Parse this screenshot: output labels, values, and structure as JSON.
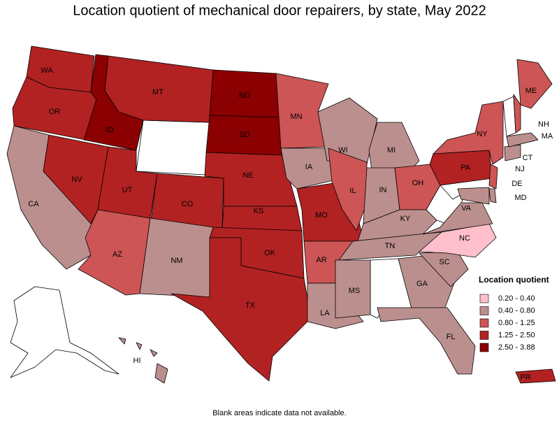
{
  "title": "Location quotient of mechanical door repairers, by state, May 2022",
  "states": [
    {
      "label": "WA",
      "color": "#b22222"
    },
    {
      "label": "OR",
      "color": "#b22222"
    },
    {
      "label": "CA",
      "color": "#bc8f8f"
    },
    {
      "label": "NV",
      "color": "#b22222"
    },
    {
      "label": "ID",
      "color": "#8b0000"
    },
    {
      "label": "MT",
      "color": "#b22222"
    },
    {
      "label": "UT",
      "color": "#b22222"
    },
    {
      "label": "CO",
      "color": "#b22222"
    },
    {
      "label": "AZ",
      "color": "#cd5555"
    },
    {
      "label": "NM",
      "color": "#bc8f8f"
    },
    {
      "label": "ND",
      "color": "#8b0000"
    },
    {
      "label": "SD",
      "color": "#8b0000"
    },
    {
      "label": "NE",
      "color": "#b22222"
    },
    {
      "label": "KS",
      "color": "#b22222"
    },
    {
      "label": "OK",
      "color": "#b22222"
    },
    {
      "label": "TX",
      "color": "#b22222"
    },
    {
      "label": "MN",
      "color": "#cd5555"
    },
    {
      "label": "IA",
      "color": "#bc8f8f"
    },
    {
      "label": "MO",
      "color": "#b22222"
    },
    {
      "label": "AR",
      "color": "#cd5555"
    },
    {
      "label": "LA",
      "color": "#bc8f8f"
    },
    {
      "label": "WI",
      "color": "#bc8f8f"
    },
    {
      "label": "IL",
      "color": "#cd5555"
    },
    {
      "label": "MI",
      "color": "#bc8f8f"
    },
    {
      "label": "IN",
      "color": "#bc8f8f"
    },
    {
      "label": "OH",
      "color": "#cd5555"
    },
    {
      "label": "KY",
      "color": "#bc8f8f"
    },
    {
      "label": "TN",
      "color": "#bc8f8f"
    },
    {
      "label": "MS",
      "color": "#bc8f8f"
    },
    {
      "label": "GA",
      "color": "#bc8f8f"
    },
    {
      "label": "FL",
      "color": "#bc8f8f"
    },
    {
      "label": "SC",
      "color": "#bc8f8f"
    },
    {
      "label": "NC",
      "color": "#ffc0cb"
    },
    {
      "label": "VA",
      "color": "#bc8f8f"
    },
    {
      "label": "MD",
      "color": "#bc8f8f"
    },
    {
      "label": "DE",
      "color": "#bc8f8f"
    },
    {
      "label": "PA",
      "color": "#b22222"
    },
    {
      "label": "NJ",
      "color": "#cd5555"
    },
    {
      "label": "NY",
      "color": "#cd5555"
    },
    {
      "label": "CT",
      "color": "#bc8f8f"
    },
    {
      "label": "MA",
      "color": "#bc8f8f"
    },
    {
      "label": "NH",
      "color": "#cd5555"
    },
    {
      "label": "ME",
      "color": "#cd5555"
    },
    {
      "label": "HI",
      "color": "#bc8f8f"
    },
    {
      "label": "PR",
      "color": "#b22222"
    }
  ],
  "legend": {
    "title": "Location quotient",
    "items": [
      {
        "label": "0.20 - 0.40",
        "color": "#ffc0cb"
      },
      {
        "label": "0.40 - 0.80",
        "color": "#bc8f8f"
      },
      {
        "label": "0.80 - 1.25",
        "color": "#cd5555"
      },
      {
        "label": "1.25 - 2.50",
        "color": "#b22222"
      },
      {
        "label": "2.50 - 3.88",
        "color": "#8b0000"
      }
    ]
  },
  "note": "Blank areas indicate data not available."
}
